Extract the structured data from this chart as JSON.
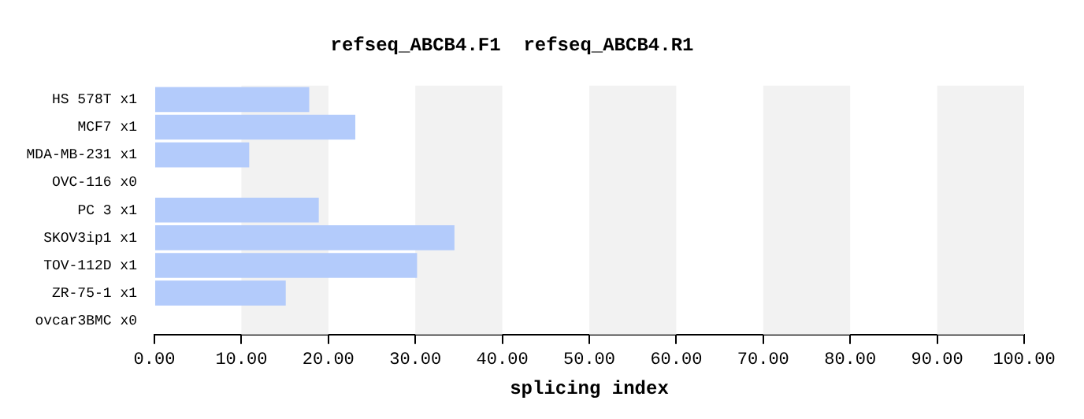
{
  "chart_data": {
    "type": "bar",
    "orientation": "horizontal",
    "title": "refseq_ABCB4.F1  refseq_ABCB4.R1",
    "xlabel": "splicing index",
    "categories": [
      "HS 578T x1",
      "MCF7 x1",
      "MDA-MB-231 x1",
      "OVC-116 x0",
      "PC 3 x1",
      "SKOV3ip1 x1",
      "TOV-112D x1",
      "ZR-75-1 x1",
      "ovcar3BMC x0"
    ],
    "values": [
      17.8,
      23.1,
      10.9,
      0,
      18.9,
      34.5,
      30.2,
      15.1,
      0
    ],
    "color": "#b3cbfb",
    "xlim": [
      0,
      100
    ],
    "xticks": [
      {
        "value": 0,
        "label": "0.00"
      },
      {
        "value": 10,
        "label": "10.00"
      },
      {
        "value": 20,
        "label": "20.00"
      },
      {
        "value": 30,
        "label": "30.00"
      },
      {
        "value": 40,
        "label": "40.00"
      },
      {
        "value": 50,
        "label": "50.00"
      },
      {
        "value": 60,
        "label": "60.00"
      },
      {
        "value": 70,
        "label": "70.00"
      },
      {
        "value": 80,
        "label": "80.00"
      },
      {
        "value": 90,
        "label": "90.00"
      },
      {
        "value": 100,
        "label": "100.00"
      }
    ],
    "bands": [
      {
        "axis": "x",
        "from": 10,
        "to": 20,
        "color": "#f2f2f2"
      },
      {
        "axis": "x",
        "from": 30,
        "to": 40,
        "color": "#f2f2f2"
      },
      {
        "axis": "x",
        "from": 50,
        "to": 60,
        "color": "#f2f2f2"
      },
      {
        "axis": "x",
        "from": 70,
        "to": 80,
        "color": "#f2f2f2"
      },
      {
        "axis": "x",
        "from": 90,
        "to": 100,
        "color": "#f2f2f2"
      }
    ],
    "grid": false,
    "legend": false
  }
}
